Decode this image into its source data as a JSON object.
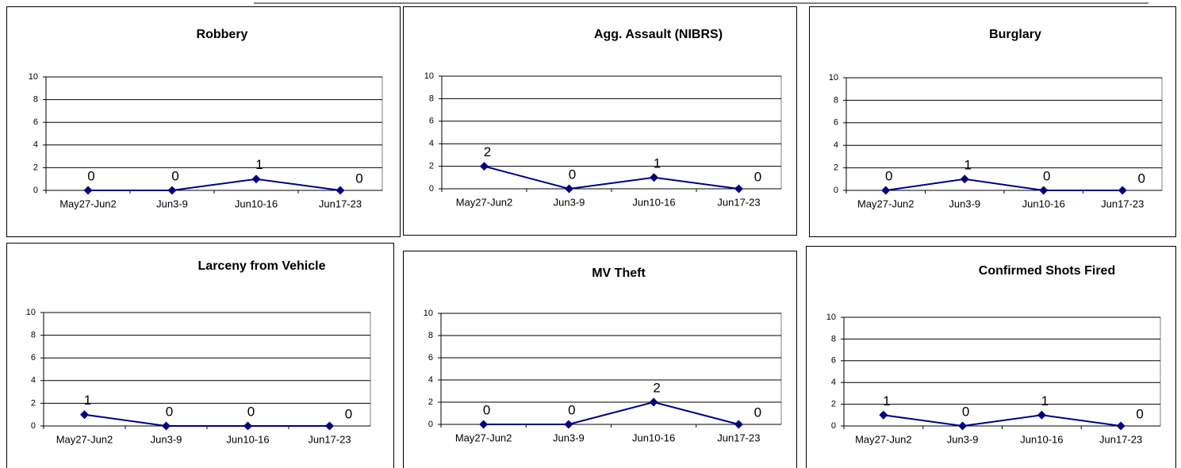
{
  "chart_data": [
    {
      "type": "line",
      "title": "Robbery",
      "categories": [
        "May27-Jun2",
        "Jun3-9",
        "Jun10-16",
        "Jun17-23"
      ],
      "values": [
        0,
        0,
        1,
        0
      ],
      "color": "#000080",
      "ylim": [
        0,
        10
      ],
      "yticks": [
        0,
        2,
        4,
        6,
        8,
        10
      ],
      "grid": true
    },
    {
      "type": "line",
      "title": "Agg. Assault (NIBRS)",
      "categories": [
        "May27-Jun2",
        "Jun3-9",
        "Jun10-16",
        "Jun17-23"
      ],
      "values": [
        2,
        0,
        1,
        0
      ],
      "color": "#000080",
      "ylim": [
        0,
        10
      ],
      "yticks": [
        0,
        2,
        4,
        6,
        8,
        10
      ],
      "grid": true
    },
    {
      "type": "line",
      "title": "Burglary",
      "categories": [
        "May27-Jun2",
        "Jun3-9",
        "Jun10-16",
        "Jun17-23"
      ],
      "values": [
        0,
        1,
        0,
        0
      ],
      "color": "#000080",
      "ylim": [
        0,
        10
      ],
      "yticks": [
        0,
        2,
        4,
        6,
        8,
        10
      ],
      "grid": true
    },
    {
      "type": "line",
      "title": "Larceny from Vehicle",
      "categories": [
        "May27-Jun2",
        "Jun3-9",
        "Jun10-16",
        "Jun17-23"
      ],
      "values": [
        1,
        0,
        0,
        0
      ],
      "color": "#000080",
      "ylim": [
        0,
        10
      ],
      "yticks": [
        0,
        2,
        4,
        6,
        8,
        10
      ],
      "grid": true
    },
    {
      "type": "line",
      "title": "MV Theft",
      "categories": [
        "May27-Jun2",
        "Jun3-9",
        "Jun10-16",
        "Jun17-23"
      ],
      "values": [
        0,
        0,
        2,
        0
      ],
      "color": "#000080",
      "ylim": [
        0,
        10
      ],
      "yticks": [
        0,
        2,
        4,
        6,
        8,
        10
      ],
      "grid": true
    },
    {
      "type": "line",
      "title": "Confirmed Shots Fired",
      "categories": [
        "May27-Jun2",
        "Jun3-9",
        "Jun10-16",
        "Jun17-23"
      ],
      "values": [
        1,
        0,
        1,
        0
      ],
      "color": "#000080",
      "ylim": [
        0,
        10
      ],
      "yticks": [
        0,
        2,
        4,
        6,
        8,
        10
      ],
      "grid": true
    }
  ]
}
